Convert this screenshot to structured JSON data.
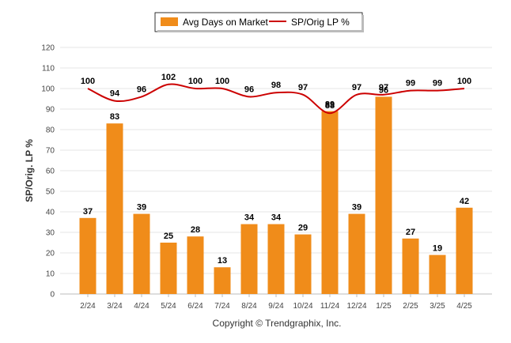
{
  "chart_data": {
    "type": "bar",
    "categories": [
      "2/24",
      "3/24",
      "4/24",
      "5/24",
      "6/24",
      "7/24",
      "8/24",
      "9/24",
      "10/24",
      "11/24",
      "12/24",
      "1/25",
      "2/25",
      "3/25",
      "4/25"
    ],
    "series": [
      {
        "name": "Avg Days on Market",
        "type": "bar",
        "color": "#f08c1a",
        "values": [
          37,
          83,
          39,
          25,
          28,
          13,
          34,
          34,
          29,
          89,
          39,
          96,
          27,
          19,
          42
        ],
        "labels": [
          "37",
          "83",
          "39",
          "25",
          "28",
          "13",
          "34",
          "34",
          "29",
          "89",
          "39",
          "96",
          "27",
          "19",
          "42"
        ]
      },
      {
        "name": "SP/Orig LP %",
        "type": "line",
        "color": "#cc0000",
        "values": [
          100,
          94,
          96,
          102,
          100,
          100,
          96,
          98,
          97,
          88,
          97,
          97,
          99,
          99,
          100
        ],
        "labels": [
          "100",
          "94",
          "96",
          "102",
          "100",
          "100",
          "96",
          "98",
          "97",
          "88",
          "97",
          "97",
          "99",
          "99",
          "100"
        ]
      }
    ],
    "ylabel": "SP/Orig. LP %",
    "ylim": [
      0,
      120
    ],
    "yticks": [
      "0",
      "10",
      "20",
      "30",
      "40",
      "50",
      "60",
      "70",
      "80",
      "90",
      "100",
      "110",
      "120"
    ],
    "grid": true,
    "legend": "top-center"
  },
  "footer": {
    "copyright": "Copyright © Trendgraphix, Inc."
  }
}
